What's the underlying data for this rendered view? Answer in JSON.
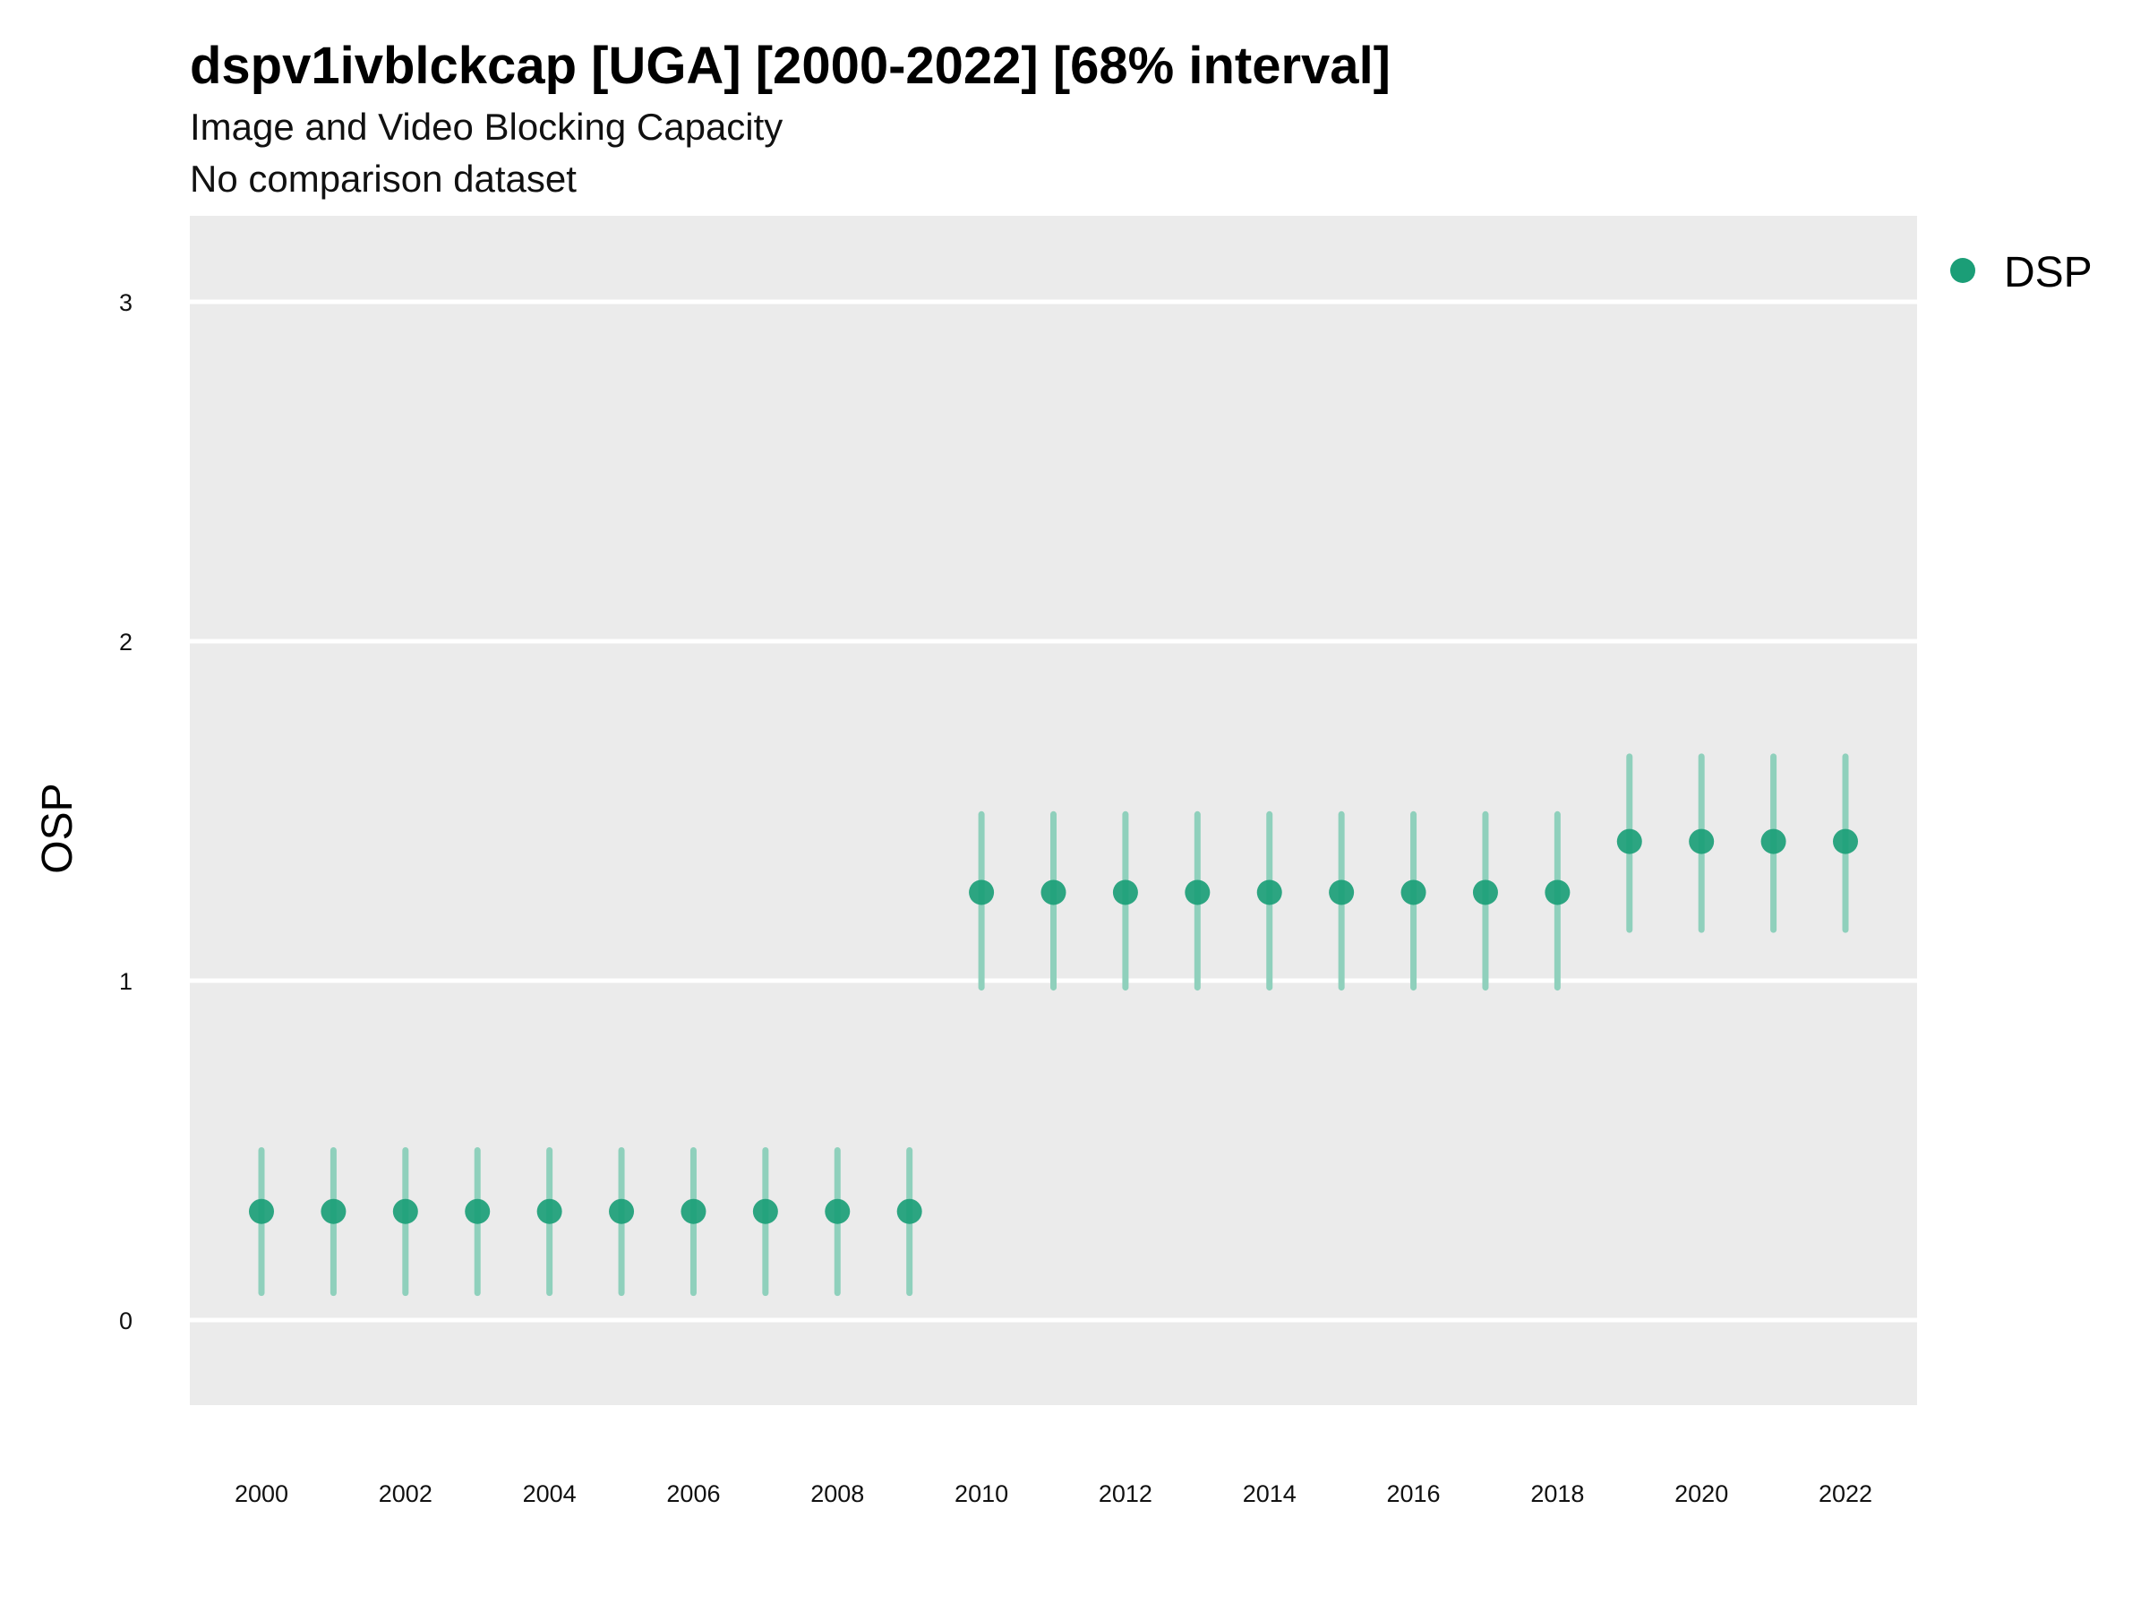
{
  "chart_data": {
    "type": "scatter",
    "title": "dspv1ivblckcap [UGA] [2000-2022] [68% interval]",
    "subtitle": "Image and Video Blocking Capacity",
    "caption_line": "No comparison dataset",
    "xlabel": "",
    "ylabel": "OSP",
    "xlim": [
      1999,
      2024
    ],
    "ylim": [
      -0.25,
      3.25
    ],
    "x_ticks": [
      2000,
      2002,
      2004,
      2006,
      2008,
      2010,
      2012,
      2014,
      2016,
      2018,
      2020,
      2022
    ],
    "y_ticks": [
      0,
      1,
      2,
      3
    ],
    "grid": true,
    "legend_position": "top-right",
    "colors": {
      "panel_background": "#EBEBEB",
      "gridline": "#FFFFFF",
      "series_point": "#1B9E77",
      "series_interval": "#8FD0BC"
    },
    "series": [
      {
        "name": "DSP",
        "x": [
          2000,
          2001,
          2002,
          2003,
          2004,
          2005,
          2006,
          2007,
          2008,
          2009,
          2010,
          2011,
          2012,
          2013,
          2014,
          2015,
          2016,
          2017,
          2018,
          2019,
          2020,
          2021,
          2022
        ],
        "y": [
          0.32,
          0.32,
          0.32,
          0.32,
          0.32,
          0.32,
          0.32,
          0.32,
          0.32,
          0.32,
          1.26,
          1.26,
          1.26,
          1.26,
          1.26,
          1.26,
          1.26,
          1.26,
          1.26,
          1.41,
          1.41,
          1.41,
          1.41
        ],
        "lower": [
          0.08,
          0.08,
          0.08,
          0.08,
          0.08,
          0.08,
          0.08,
          0.08,
          0.08,
          0.08,
          0.98,
          0.98,
          0.98,
          0.98,
          0.98,
          0.98,
          0.98,
          0.98,
          0.98,
          1.15,
          1.15,
          1.15,
          1.15
        ],
        "upper": [
          0.5,
          0.5,
          0.5,
          0.5,
          0.5,
          0.5,
          0.5,
          0.5,
          0.5,
          0.5,
          1.49,
          1.49,
          1.49,
          1.49,
          1.49,
          1.49,
          1.49,
          1.49,
          1.49,
          1.66,
          1.66,
          1.66,
          1.66
        ]
      }
    ]
  }
}
